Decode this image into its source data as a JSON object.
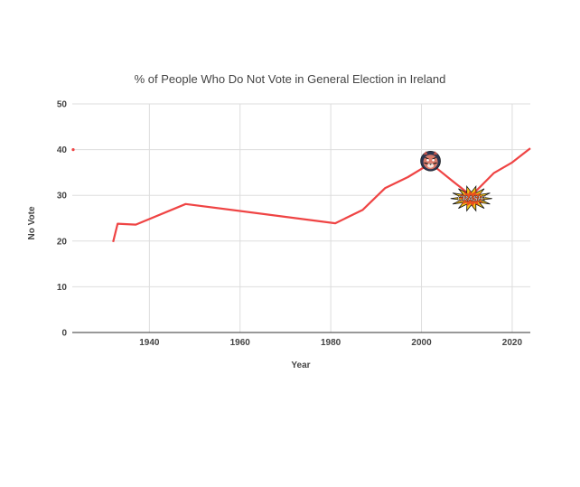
{
  "chart_data": {
    "type": "line",
    "title": "% of People Who Do Not Vote in General Election in Ireland",
    "xlabel": "Year",
    "ylabel": "No Vote",
    "xlim": [
      1923,
      2024
    ],
    "ylim": [
      0,
      50
    ],
    "x_ticks": [
      1940,
      1960,
      1980,
      2000,
      2020
    ],
    "y_ticks": [
      0,
      10,
      20,
      30,
      40,
      50
    ],
    "grid": true,
    "legend": "none",
    "series": [
      {
        "color": "#ef4444",
        "points": [
          {
            "x": 1923,
            "y": 40
          },
          {
            "x": 1932,
            "y": 19.8
          },
          {
            "x": 1933,
            "y": 23.8
          },
          {
            "x": 1937,
            "y": 23.6
          },
          {
            "x": 1948,
            "y": 28.1
          },
          {
            "x": 1981,
            "y": 23.9
          },
          {
            "x": 1987,
            "y": 26.8
          },
          {
            "x": 1992,
            "y": 31.6
          },
          {
            "x": 1997,
            "y": 34.0
          },
          {
            "x": 2002,
            "y": 37.0
          },
          {
            "x": 2007,
            "y": 33.0
          },
          {
            "x": 2011,
            "y": 29.9
          },
          {
            "x": 2016,
            "y": 34.9
          },
          {
            "x": 2020,
            "y": 37.2
          },
          {
            "x": 2024,
            "y": 40.3
          }
        ]
      }
    ],
    "annotations": [
      {
        "icon": "tiger-face-icon",
        "x": 2002,
        "y": 37.5
      },
      {
        "icon": "crash-burst-icon",
        "text": "CRASH!",
        "x": 2011,
        "y": 29.3
      }
    ]
  }
}
